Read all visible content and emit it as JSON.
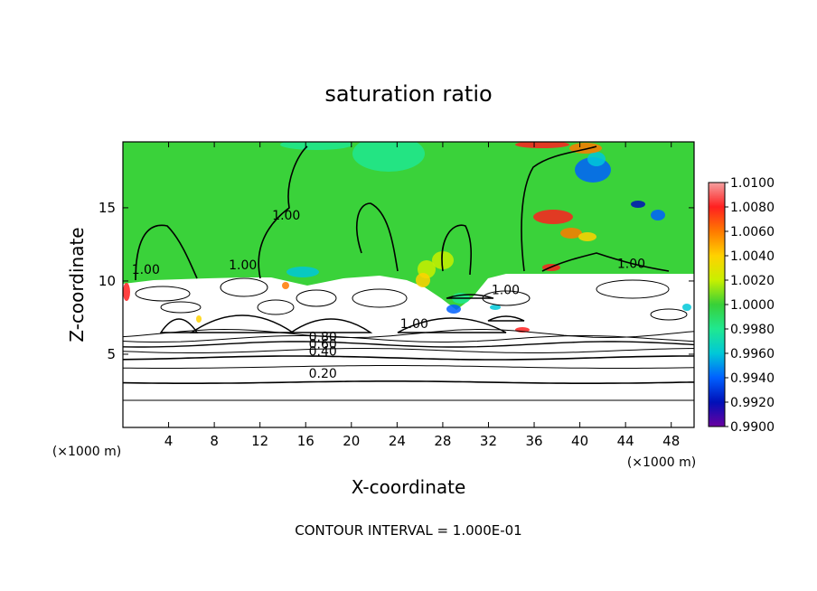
{
  "chart_data": {
    "type": "heatmap",
    "title": "saturation ratio",
    "xlabel": "X-coordinate",
    "ylabel": "Z-coordinate",
    "x_units": "(×1000 m)",
    "xlim": [
      0,
      50
    ],
    "ylim": [
      0,
      19.5
    ],
    "x_ticks": [
      4,
      8,
      12,
      16,
      20,
      24,
      28,
      32,
      36,
      40,
      44,
      48
    ],
    "y_ticks": [
      5,
      10,
      15
    ],
    "footer": "CONTOUR INTERVAL = 1.000E-01",
    "colorbar": {
      "levels": [
        1.01,
        1.008,
        1.006,
        1.004,
        1.002,
        1.0,
        0.998,
        0.996,
        0.994,
        0.992,
        0.99
      ],
      "tick_labels": [
        "1.0100",
        "1.0080",
        "1.0060",
        "1.0040",
        "1.0020",
        "1.0000",
        "0.9980",
        "0.9960",
        "0.9940",
        "0.9920",
        "0.9900"
      ],
      "colors": [
        "#f4a0a0",
        "#ff2020",
        "#ff7a00",
        "#ffd200",
        "#c8f000",
        "#38d038",
        "#20e890",
        "#00c8d8",
        "#0060ff",
        "#0010b8",
        "#6a00a0"
      ]
    },
    "contour_labels": [
      {
        "text": "1.00",
        "x": 2.0,
        "z": 10.5
      },
      {
        "text": "1.00",
        "x": 10.5,
        "z": 10.8
      },
      {
        "text": "1.00",
        "x": 14.3,
        "z": 14.2
      },
      {
        "text": "1.00",
        "x": 25.5,
        "z": 6.8
      },
      {
        "text": "1.00",
        "x": 33.5,
        "z": 9.1
      },
      {
        "text": "1.00",
        "x": 44.5,
        "z": 10.9
      },
      {
        "text": "0.80",
        "x": 17.5,
        "z": 5.9
      },
      {
        "text": "0.60",
        "x": 17.5,
        "z": 5.4
      },
      {
        "text": "0.40",
        "x": 17.5,
        "z": 4.9
      },
      {
        "text": "0.20",
        "x": 17.5,
        "z": 3.4
      }
    ],
    "colors": {
      "saturated_field": "#3ad23a",
      "subsaturated_field": "#ffffff",
      "contour": "#000000"
    }
  }
}
